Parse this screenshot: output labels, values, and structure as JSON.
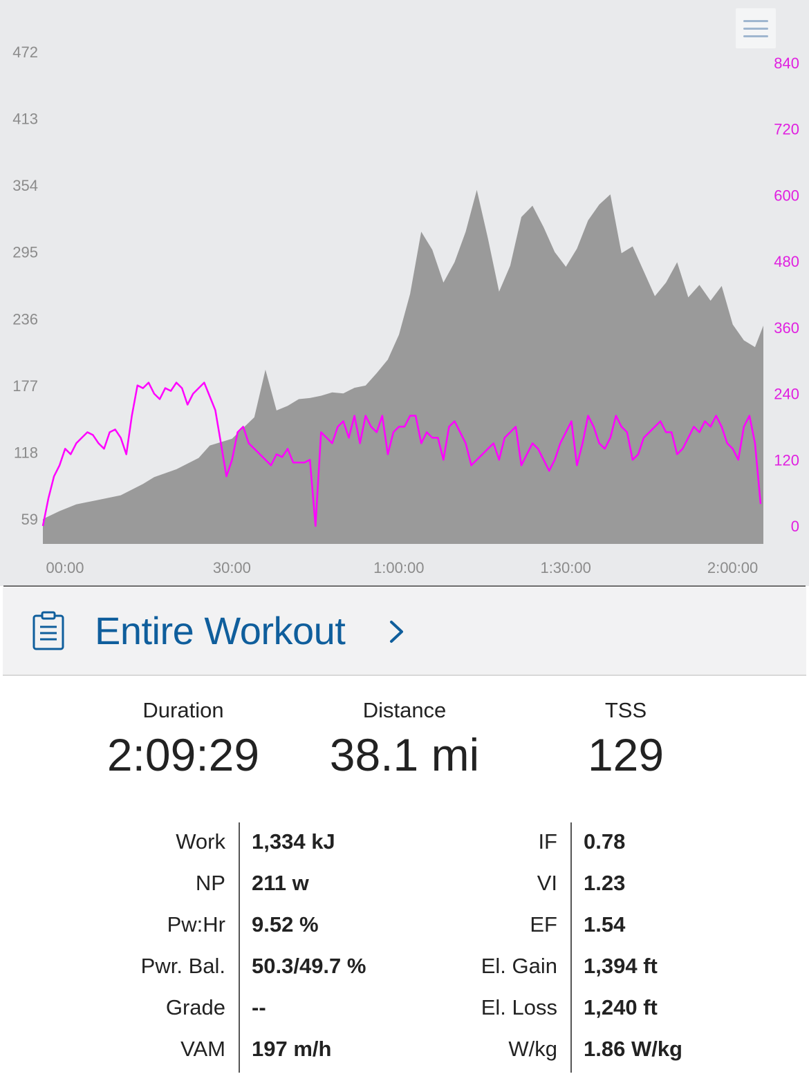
{
  "chart": {
    "menu_icon": "hamburger-menu-icon",
    "left_axis_ticks": [
      "472",
      "413",
      "354",
      "295",
      "236",
      "177",
      "118",
      "59"
    ],
    "right_axis_ticks": [
      "840",
      "720",
      "600",
      "480",
      "360",
      "240",
      "120",
      "0"
    ],
    "x_axis_ticks": [
      "00:00",
      "30:00",
      "1:00:00",
      "1:30:00",
      "2:00:00"
    ],
    "elevation_color": "#9a9a9a",
    "power_color": "#ff00ff"
  },
  "chart_data": {
    "type": "area",
    "x_unit": "minutes",
    "xlim": [
      0,
      129.5
    ],
    "elevation": {
      "axis": "left",
      "ylim": [
        59,
        472
      ],
      "x": [
        0,
        3,
        6,
        10,
        14,
        18,
        20,
        24,
        28,
        30,
        34,
        38,
        40,
        42,
        44,
        46,
        48,
        50,
        52,
        54,
        56,
        58,
        60,
        62,
        64,
        66,
        68,
        70,
        72,
        74,
        76,
        78,
        80,
        82,
        84,
        86,
        88,
        90,
        92,
        94,
        96,
        98,
        100,
        102,
        104,
        106,
        108,
        110,
        112,
        114,
        116,
        118,
        120,
        122,
        124,
        126,
        128,
        129.5
      ],
      "y": [
        59,
        66,
        72,
        76,
        80,
        90,
        96,
        103,
        113,
        124,
        130,
        149,
        191,
        155,
        159,
        165,
        166,
        168,
        171,
        170,
        175,
        177,
        188,
        200,
        222,
        258,
        313,
        297,
        268,
        286,
        313,
        350,
        307,
        260,
        283,
        326,
        336,
        317,
        295,
        282,
        298,
        323,
        337,
        346,
        294,
        300,
        278,
        256,
        268,
        286,
        255,
        266,
        252,
        265,
        231,
        217,
        211,
        230
      ]
    },
    "power": {
      "axis": "right",
      "ylim": [
        0,
        840
      ],
      "x": [
        0,
        1,
        2,
        3,
        4,
        5,
        6,
        7,
        8,
        9,
        10,
        11,
        12,
        13,
        14,
        15,
        16,
        17,
        18,
        19,
        20,
        21,
        22,
        23,
        24,
        25,
        26,
        27,
        28,
        29,
        30,
        31,
        32,
        33,
        34,
        35,
        36,
        37,
        38,
        39,
        40,
        41,
        42,
        43,
        44,
        45,
        46,
        47,
        48,
        49,
        50,
        51,
        52,
        53,
        54,
        55,
        56,
        57,
        58,
        59,
        60,
        61,
        62,
        63,
        64,
        65,
        66,
        67,
        68,
        69,
        70,
        71,
        72,
        73,
        74,
        75,
        76,
        77,
        78,
        79,
        80,
        81,
        82,
        83,
        84,
        85,
        86,
        87,
        88,
        89,
        90,
        91,
        92,
        93,
        94,
        95,
        96,
        97,
        98,
        99,
        100,
        101,
        102,
        103,
        104,
        105,
        106,
        107,
        108,
        109,
        110,
        111,
        112,
        113,
        114,
        115,
        116,
        117,
        118,
        119,
        120,
        121,
        122,
        123,
        124,
        125,
        126,
        127,
        128,
        129
      ],
      "y": [
        0,
        50,
        90,
        110,
        140,
        130,
        150,
        160,
        170,
        165,
        150,
        140,
        170,
        175,
        160,
        130,
        200,
        255,
        250,
        260,
        240,
        230,
        250,
        245,
        260,
        250,
        220,
        240,
        250,
        260,
        235,
        210,
        150,
        90,
        120,
        170,
        180,
        150,
        140,
        130,
        120,
        110,
        130,
        125,
        140,
        115,
        115,
        115,
        120,
        0,
        170,
        160,
        150,
        180,
        190,
        160,
        200,
        150,
        200,
        180,
        170,
        200,
        130,
        170,
        180,
        180,
        200,
        200,
        150,
        170,
        160,
        160,
        120,
        180,
        190,
        170,
        150,
        110,
        120,
        130,
        140,
        150,
        120,
        160,
        170,
        180,
        110,
        130,
        150,
        140,
        120,
        100,
        120,
        150,
        170,
        190,
        110,
        150,
        200,
        180,
        150,
        140,
        160,
        200,
        180,
        170,
        120,
        130,
        160,
        170,
        180,
        190,
        170,
        170,
        130,
        140,
        160,
        180,
        170,
        190,
        180,
        200,
        180,
        150,
        140,
        120,
        180,
        200,
        150,
        40
      ]
    }
  },
  "section": {
    "title": "Entire Workout",
    "icon": "clipboard-icon",
    "chevron": "chevron-right-icon"
  },
  "summary": [
    {
      "label": "Duration",
      "value": "2:09:29"
    },
    {
      "label": "Distance",
      "value": "38.1 mi"
    },
    {
      "label": "TSS",
      "value": "129"
    }
  ],
  "stats_left": [
    {
      "label": "Work",
      "value": "1,334 kJ"
    },
    {
      "label": "NP",
      "value": "211 w"
    },
    {
      "label": "Pw:Hr",
      "value": "9.52 %"
    },
    {
      "label": "Pwr. Bal.",
      "value": "50.3/49.7 %"
    },
    {
      "label": "Grade",
      "value": "--"
    },
    {
      "label": "VAM",
      "value": "197 m/h"
    }
  ],
  "stats_right": [
    {
      "label": "IF",
      "value": "0.78"
    },
    {
      "label": "VI",
      "value": "1.23"
    },
    {
      "label": "EF",
      "value": "1.54"
    },
    {
      "label": "El. Gain",
      "value": "1,394 ft"
    },
    {
      "label": "El. Loss",
      "value": "1,240 ft"
    },
    {
      "label": "W/kg",
      "value": "1.86 W/kg"
    }
  ]
}
